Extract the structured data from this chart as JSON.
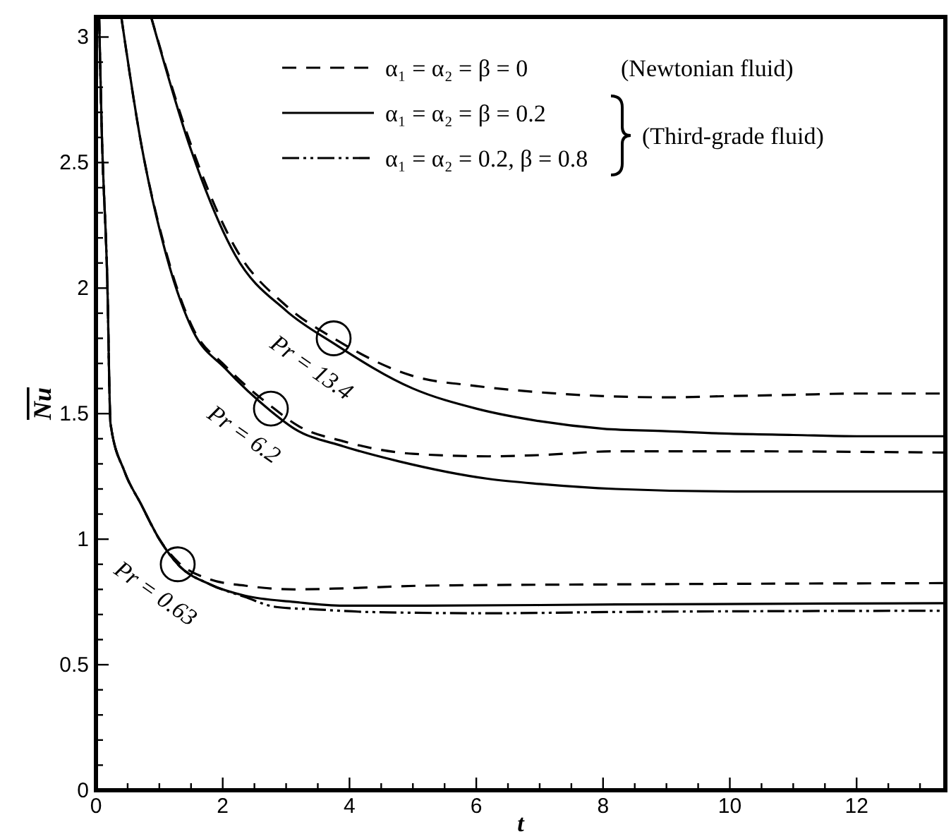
{
  "chart_data": {
    "type": "line",
    "xlabel": "t",
    "ylabel": "Nu",
    "xlim": [
      0,
      13.4
    ],
    "ylim": [
      0,
      3.08
    ],
    "xticks": [
      0,
      {
        "value": 0.5,
        "label": null
      },
      {
        "value": 1,
        "label": null
      },
      {
        "value": 1.5,
        "label": null
      },
      2,
      {
        "value": 2.5,
        "label": null
      },
      {
        "value": 3,
        "label": null
      },
      {
        "value": 3.5,
        "label": null
      },
      4,
      {
        "value": 4.5,
        "label": null
      },
      {
        "value": 5,
        "label": null
      },
      {
        "value": 5.5,
        "label": null
      },
      6,
      {
        "value": 6.5,
        "label": null
      },
      {
        "value": 7,
        "label": null
      },
      {
        "value": 7.5,
        "label": null
      },
      8,
      {
        "value": 8.5,
        "label": null
      },
      {
        "value": 9,
        "label": null
      },
      {
        "value": 9.5,
        "label": null
      },
      10,
      {
        "value": 10.5,
        "label": null
      },
      {
        "value": 11,
        "label": null
      },
      {
        "value": 11.5,
        "label": null
      },
      12,
      {
        "value": 12.5,
        "label": null
      },
      {
        "value": 13,
        "label": null
      }
    ],
    "yticks": [
      0,
      {
        "value": 0.1,
        "label": null
      },
      {
        "value": 0.2,
        "label": null
      },
      {
        "value": 0.3,
        "label": null
      },
      {
        "value": 0.4,
        "label": null
      },
      0.5,
      {
        "value": 0.6,
        "label": null
      },
      {
        "value": 0.7,
        "label": null
      },
      {
        "value": 0.8,
        "label": null
      },
      {
        "value": 0.9,
        "label": null
      },
      1,
      {
        "value": 1.1,
        "label": null
      },
      {
        "value": 1.2,
        "label": null
      },
      {
        "value": 1.3,
        "label": null
      },
      {
        "value": 1.4,
        "label": null
      },
      1.5,
      {
        "value": 1.6,
        "label": null
      },
      {
        "value": 1.7,
        "label": null
      },
      {
        "value": 1.8,
        "label": null
      },
      {
        "value": 1.9,
        "label": null
      },
      2,
      {
        "value": 2.1,
        "label": null
      },
      {
        "value": 2.2,
        "label": null
      },
      {
        "value": 2.3,
        "label": null
      },
      {
        "value": 2.4,
        "label": null
      },
      2.5,
      {
        "value": 2.6,
        "label": null
      },
      {
        "value": 2.7,
        "label": null
      },
      {
        "value": 2.8,
        "label": null
      },
      {
        "value": 2.9,
        "label": null
      },
      3
    ],
    "grid": false,
    "legend": "top",
    "marker": "none",
    "series": [
      {
        "name": "α₁ = α₂ = β = 0",
        "color": "#000000",
        "line_style": "dashed",
        "x": [
          0.87,
          1.5,
          2.2,
          3,
          3.75,
          5,
          6,
          7,
          8,
          9,
          10,
          11,
          12,
          13.4
        ],
        "values": [
          3.08,
          2.57,
          2.16,
          1.93,
          1.8,
          1.65,
          1.61,
          1.585,
          1.57,
          1.565,
          1.57,
          1.575,
          1.58,
          1.58
        ]
      },
      {
        "name": "α₁ = α₂ = β = 0.2",
        "color": "#000000",
        "line_style": "solid",
        "x": [
          0.87,
          1.5,
          2.2,
          3,
          3.75,
          5,
          6,
          7,
          8,
          9,
          10,
          11,
          12,
          13.4
        ],
        "values": [
          3.08,
          2.55,
          2.13,
          1.91,
          1.78,
          1.6,
          1.52,
          1.47,
          1.44,
          1.43,
          1.42,
          1.415,
          1.41,
          1.41
        ]
      },
      {
        "color": "#000000",
        "line_style": "dashed",
        "x": [
          0.4,
          0.71,
          1.1,
          1.53,
          2.04,
          2.76,
          3.2,
          3.9,
          5,
          6.2,
          7,
          8.2,
          10,
          13.4
        ],
        "values": [
          3.08,
          2.58,
          2.15,
          1.84,
          1.69,
          1.53,
          1.45,
          1.39,
          1.34,
          1.33,
          1.335,
          1.35,
          1.35,
          1.345
        ]
      },
      {
        "color": "#000000",
        "line_style": "solid",
        "x": [
          0.4,
          0.71,
          1.1,
          1.53,
          2.04,
          2.76,
          3.13,
          3.9,
          4.78,
          6.2,
          7,
          8.2,
          10.1,
          13.4
        ],
        "values": [
          3.08,
          2.58,
          2.14,
          1.83,
          1.68,
          1.51,
          1.44,
          1.37,
          1.31,
          1.24,
          1.22,
          1.2,
          1.19,
          1.19
        ]
      },
      {
        "color": "#000000",
        "line_style": "dashed",
        "x": [
          0.05,
          0.09,
          0.18,
          0.23,
          0.45,
          0.71,
          1,
          1.29,
          1.8,
          2.35,
          3.13,
          4,
          5.2,
          8.2,
          13.4
        ],
        "values": [
          3.08,
          2.64,
          2.02,
          1.46,
          1.27,
          1.14,
          1.0,
          0.91,
          0.84,
          0.815,
          0.8,
          0.805,
          0.815,
          0.82,
          0.825
        ]
      },
      {
        "color": "#000000",
        "line_style": "solid",
        "x": [
          0.05,
          0.09,
          0.18,
          0.23,
          0.45,
          0.71,
          1,
          1.29,
          1.8,
          2.35,
          3.13,
          3.9,
          5.2,
          8.2,
          13.4
        ],
        "values": [
          3.08,
          2.64,
          2.02,
          1.46,
          1.27,
          1.14,
          1.0,
          0.9,
          0.82,
          0.775,
          0.75,
          0.735,
          0.735,
          0.74,
          0.745
        ]
      },
      {
        "name": "α₁ = α₂ = 0.2, β = 0.8",
        "color": "#000000",
        "line_style": "dashdot",
        "x": [
          0.05,
          0.09,
          0.18,
          0.23,
          0.45,
          0.71,
          1,
          1.29,
          1.8,
          2.35,
          2.84,
          3.5,
          4.3,
          6.2,
          8.2,
          13.4
        ],
        "values": [
          3.08,
          2.64,
          2.02,
          1.46,
          1.27,
          1.14,
          1.0,
          0.9,
          0.82,
          0.77,
          0.73,
          0.72,
          0.71,
          0.705,
          0.71,
          0.715
        ]
      }
    ],
    "annotations": [
      "(Newtonian fluid)",
      "(Third-grade fluid)",
      {
        "text": "Pr = 13.4",
        "x": 3.75,
        "y": 1.8
      },
      {
        "text": "Pr = 6.2",
        "x": 2.76,
        "y": 1.52
      },
      {
        "text": "Pr = 0.63",
        "x": 1.29,
        "y": 0.9
      }
    ]
  }
}
